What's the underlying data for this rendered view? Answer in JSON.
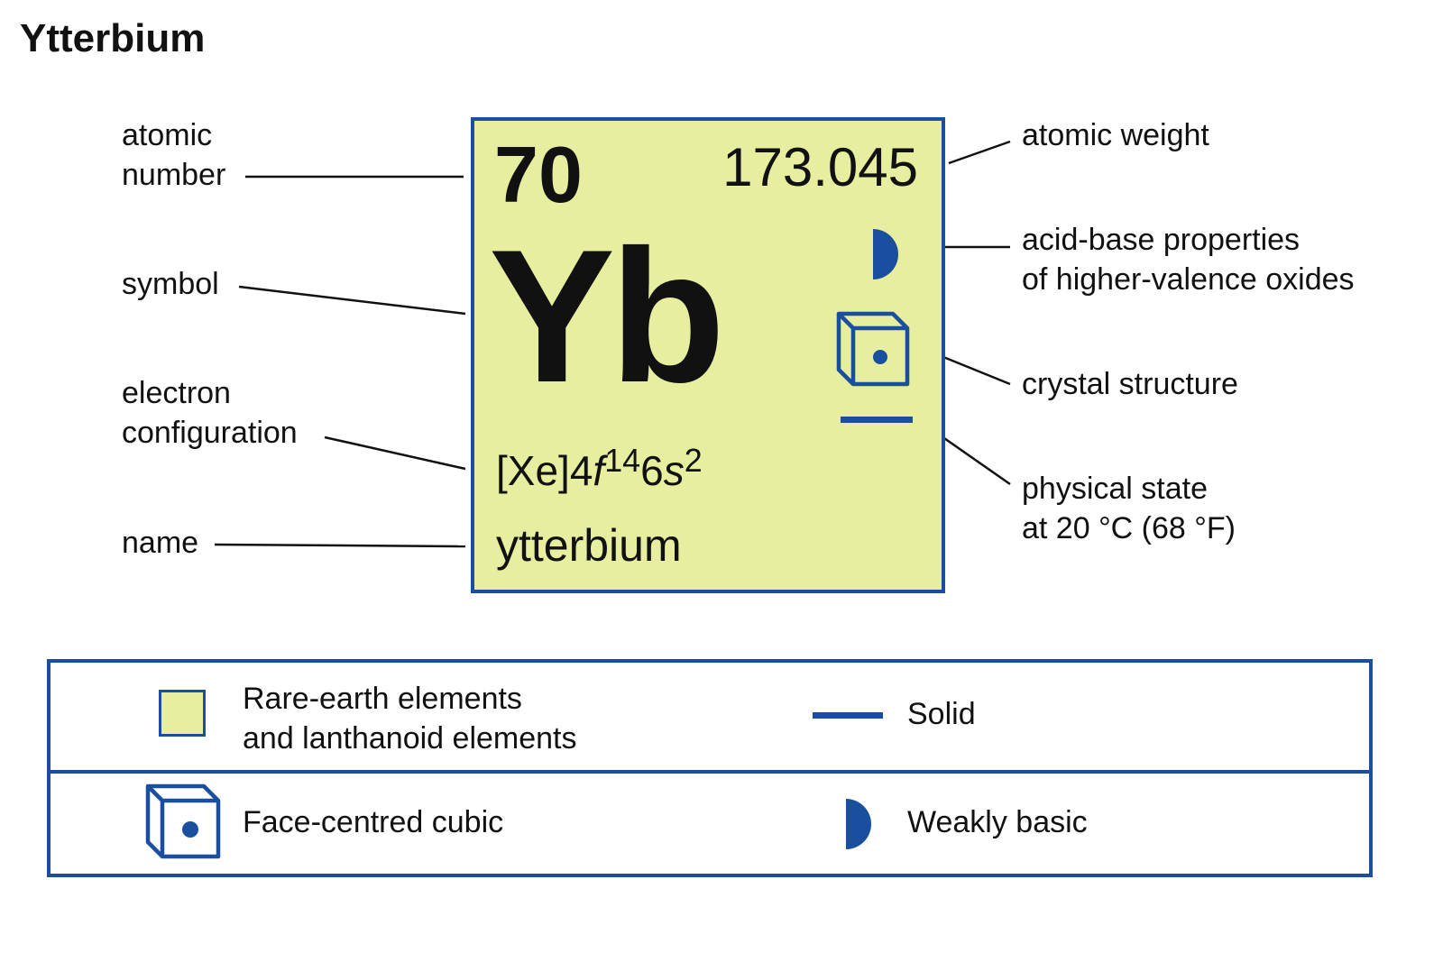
{
  "title": "Ytterbium",
  "element": {
    "atomic_number": "70",
    "atomic_weight": "173.045",
    "symbol": "Yb",
    "config_base": "[Xe]4",
    "config_f": "f",
    "config_f_exp": "14",
    "config_6": "6",
    "config_s": "s",
    "config_s_exp": "2",
    "name": "ytterbium",
    "fill_color": "#e7ee9f",
    "accent_color": "#1a4fa0"
  },
  "labels": {
    "atomic_number_1": "atomic",
    "atomic_number_2": "number",
    "symbol": "symbol",
    "electron_config_1": "electron",
    "electron_config_2": "configuration",
    "name": "name",
    "atomic_weight": "atomic weight",
    "acid_base_1": "acid-base properties",
    "acid_base_2": "of higher-valence oxides",
    "crystal": "crystal structure",
    "state_1": "physical state",
    "state_2": "at 20 °C (68 °F)"
  },
  "legend": {
    "category_1": "Rare-earth elements",
    "category_2": "and lanthanoid elements",
    "state": "Solid",
    "crystal": "Face-centred cubic",
    "acid_base": "Weakly basic"
  },
  "icons": [
    "half-disc-icon",
    "cube-icon",
    "solid-bar-icon",
    "color-swatch-icon"
  ]
}
